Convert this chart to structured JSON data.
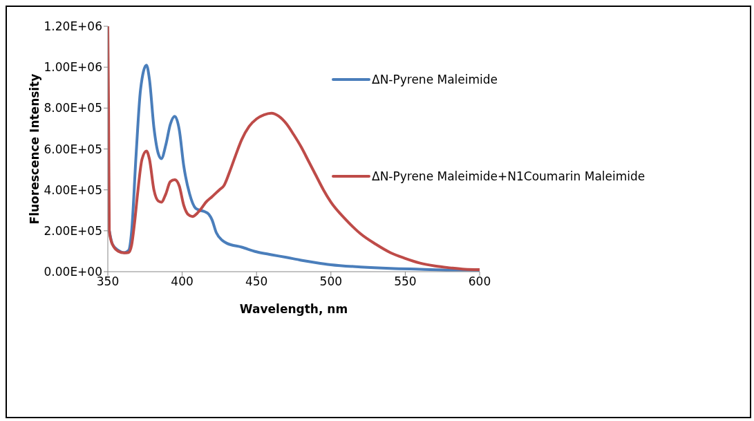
{
  "chart_data": {
    "type": "line",
    "xlabel": "Wavelength, nm",
    "ylabel": "Fluorescence Intensity",
    "xlim": [
      350,
      600
    ],
    "xticks": [
      350,
      400,
      450,
      500,
      550,
      600
    ],
    "ylim": [
      0,
      1200000
    ],
    "yticks": [
      {
        "value": 0,
        "label": "0.00E+00"
      },
      {
        "value": 200000,
        "label": "2.00E+05"
      },
      {
        "value": 400000,
        "label": "4.00E+05"
      },
      {
        "value": 600000,
        "label": "6.00E+05"
      },
      {
        "value": 800000,
        "label": "8.00E+05"
      },
      {
        "value": 1000000,
        "label": "1.00E+06"
      },
      {
        "value": 1200000,
        "label": "1.20E+06"
      }
    ],
    "grid": false,
    "legend": "right",
    "marker": "none",
    "line_style": "solid",
    "series": [
      {
        "name": "ΔN-Pyrene Maleimide",
        "color": "#4a7ebb",
        "x": [
          351,
          353,
          357,
          361,
          364,
          366,
          369,
          372,
          376,
          378,
          381,
          384,
          386,
          389,
          392,
          395,
          398,
          401,
          405,
          409,
          412,
          415,
          418,
          420,
          423,
          427,
          430,
          440,
          450,
          460,
          470,
          480,
          490,
          500,
          520,
          540,
          560,
          580,
          600
        ],
        "values": [
          200000,
          136000,
          104000,
          93000,
          104000,
          196000,
          570000,
          890000,
          1010000,
          940000,
          705000,
          576000,
          553000,
          620000,
          720000,
          760000,
          696000,
          520000,
          380000,
          310000,
          300000,
          294000,
          280000,
          255000,
          190000,
          153000,
          139000,
          120000,
          97000,
          83000,
          70000,
          56000,
          44000,
          34000,
          23000,
          16000,
          12000,
          8000,
          7000
        ]
      },
      {
        "name": "ΔN-Pyrene Maleimide+N1Coumarin Maleimide",
        "color": "#be4b48",
        "x": [
          350,
          350.5,
          351,
          353,
          357,
          361,
          364,
          366,
          368,
          370,
          373,
          376,
          378,
          381,
          384,
          386,
          389,
          392,
          395,
          398,
          401,
          404,
          407,
          410,
          413,
          416,
          420,
          425,
          428,
          432,
          436,
          440,
          445,
          450,
          455,
          460,
          465,
          470,
          475,
          480,
          485,
          490,
          495,
          500,
          510,
          520,
          530,
          540,
          550,
          560,
          570,
          580,
          590,
          600
        ],
        "values": [
          1200000,
          800000,
          200000,
          135000,
          100000,
          92000,
          94000,
          130000,
          240000,
          380000,
          550000,
          590000,
          550000,
          400000,
          345000,
          340000,
          380000,
          440000,
          450000,
          420000,
          326000,
          280000,
          270000,
          285000,
          310000,
          340000,
          366000,
          400000,
          420000,
          490000,
          570000,
          645000,
          710000,
          747000,
          767000,
          775000,
          760000,
          724000,
          670000,
          610000,
          540000,
          470000,
          400000,
          340000,
          255000,
          185000,
          135000,
          93000,
          65000,
          42000,
          28000,
          19000,
          12000,
          10000
        ]
      }
    ]
  }
}
